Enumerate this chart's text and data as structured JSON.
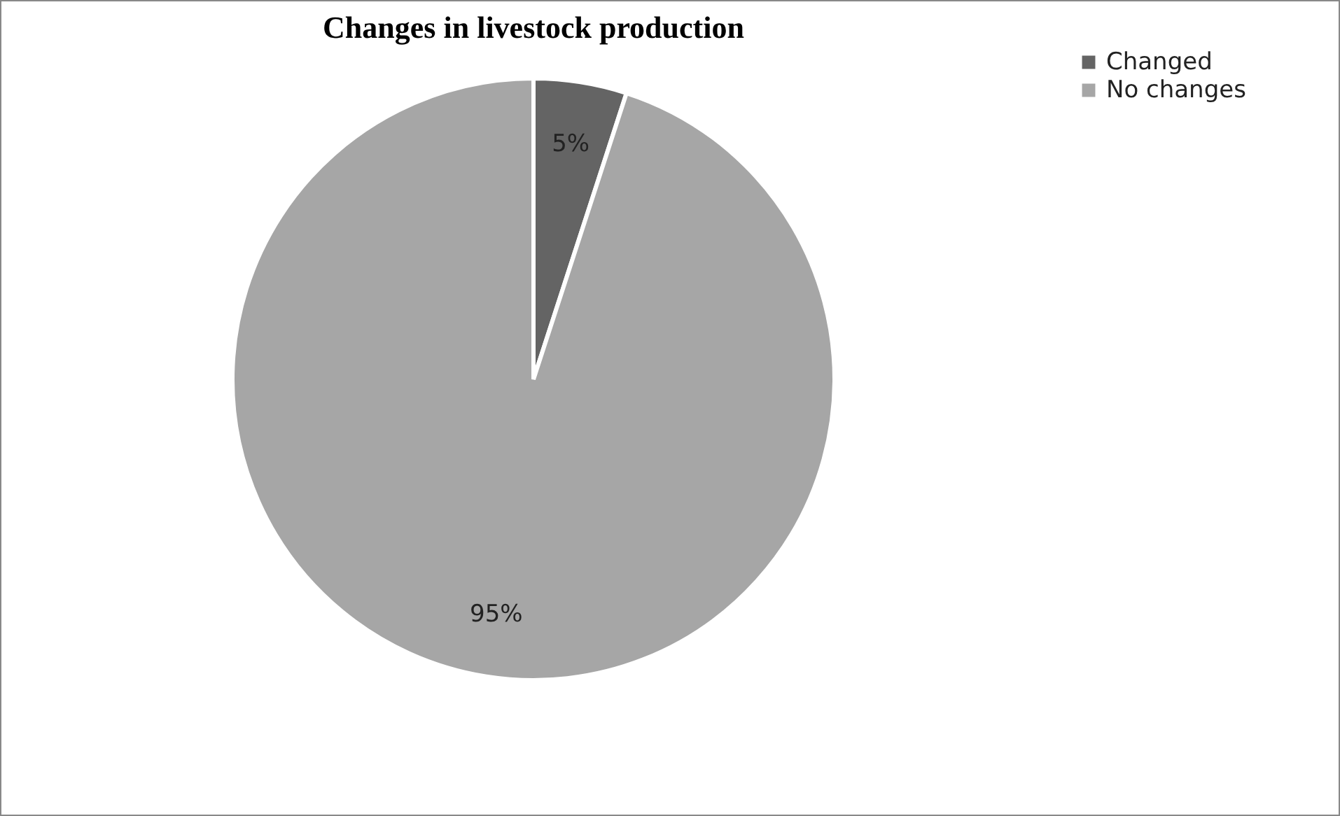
{
  "chart_data": {
    "type": "pie",
    "title": "Changes in livestock production",
    "categories": [
      "Changed",
      "No changes"
    ],
    "values": [
      5,
      95
    ],
    "colors": [
      "#646464",
      "#a6a6a6"
    ],
    "value_labels": [
      "5%",
      "95%"
    ],
    "legend": "right"
  }
}
